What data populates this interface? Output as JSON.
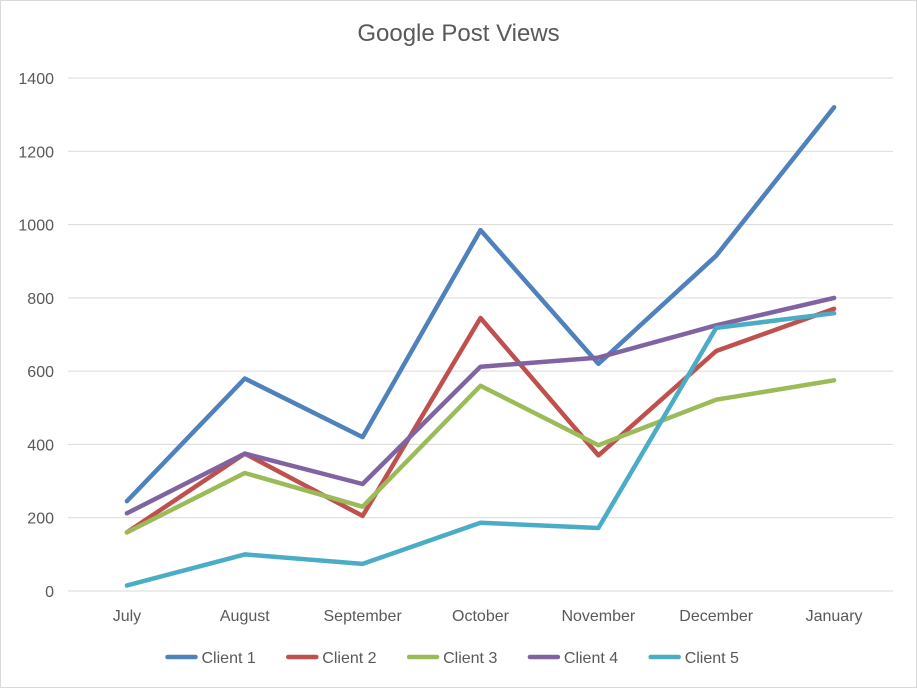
{
  "chart_data": {
    "type": "line",
    "title": "Google Post Views",
    "xlabel": "",
    "ylabel": "",
    "categories": [
      "July",
      "August",
      "September",
      "October",
      "November",
      "December",
      "January"
    ],
    "ylim": [
      0,
      1400
    ],
    "yticks": [
      0,
      200,
      400,
      600,
      800,
      1000,
      1200,
      1400
    ],
    "grid": true,
    "legend": "bottom",
    "series": [
      {
        "name": "Client 1",
        "color": "#4f81bd",
        "values": [
          245,
          580,
          420,
          985,
          620,
          915,
          1320
        ]
      },
      {
        "name": "Client 2",
        "color": "#c0504d",
        "values": [
          160,
          375,
          205,
          745,
          370,
          655,
          770
        ]
      },
      {
        "name": "Client 3",
        "color": "#9bbb59",
        "values": [
          160,
          322,
          230,
          560,
          398,
          522,
          575
        ]
      },
      {
        "name": "Client 4",
        "color": "#8064a2",
        "values": [
          212,
          375,
          292,
          612,
          637,
          725,
          800
        ]
      },
      {
        "name": "Client 5",
        "color": "#4bacc6",
        "values": [
          15,
          100,
          74,
          186,
          172,
          718,
          758
        ]
      }
    ]
  }
}
